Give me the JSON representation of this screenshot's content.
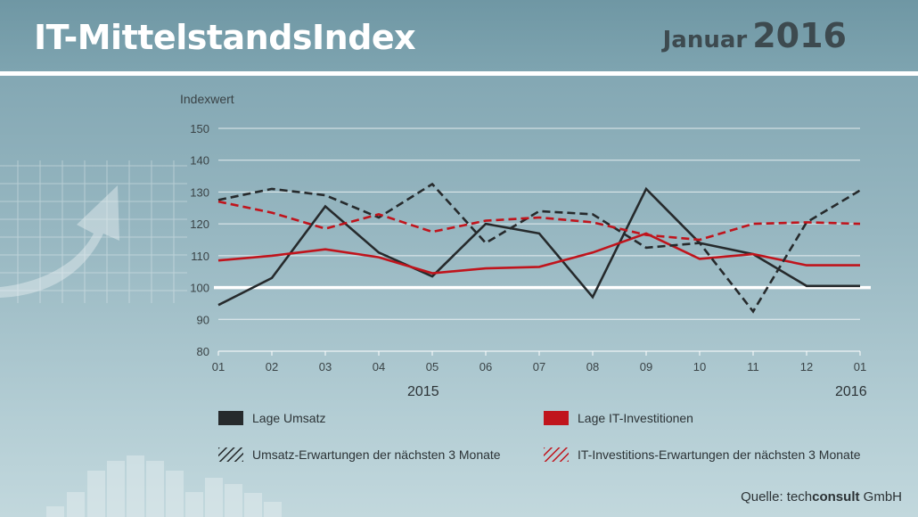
{
  "header": {
    "title": "IT-MittelstandsIndex",
    "month": "Januar",
    "year": "2016"
  },
  "source": {
    "prefix": "Quelle:",
    "brand_light": "tech",
    "brand_bold": "consult",
    "suffix": "GmbH"
  },
  "colors": {
    "umsatz": "#262a2c",
    "investitionen": "#c0141c",
    "reference_line": "#ffffff",
    "grid": "#ffffff"
  },
  "decor_icons": [
    "grid-icon",
    "arrow-up-icon",
    "bar-chart-icon"
  ],
  "chart_data": {
    "type": "line",
    "ylabel": "Indexwert",
    "ylim": [
      80,
      150
    ],
    "yticks": [
      80,
      90,
      100,
      110,
      120,
      130,
      140,
      150
    ],
    "categories": [
      "01",
      "02",
      "03",
      "04",
      "05",
      "06",
      "07",
      "08",
      "09",
      "10",
      "11",
      "12",
      "01"
    ],
    "year_labels": [
      {
        "label": "2015",
        "category_index": 6
      },
      {
        "label": "2016",
        "category_index": 12
      }
    ],
    "reference_line": 100,
    "grid": true,
    "legend_position": "bottom",
    "series": [
      {
        "name": "Lage Umsatz",
        "style": "solid",
        "color": "#262a2c",
        "values": [
          94.5,
          103,
          125.5,
          111,
          103.5,
          120,
          117,
          97,
          131,
          114,
          110.5,
          100.5,
          100.5
        ]
      },
      {
        "name": "Lage IT-Investitionen",
        "style": "solid",
        "color": "#c0141c",
        "values": [
          108.5,
          110,
          112,
          109.5,
          104.5,
          106,
          106.5,
          111,
          117,
          109,
          110.5,
          107,
          107
        ]
      },
      {
        "name": "Umsatz-Erwartungen der nächsten 3 Monate",
        "style": "dashed",
        "color": "#262a2c",
        "values": [
          127.5,
          131,
          129,
          122,
          132.5,
          114,
          124,
          123,
          112.5,
          114,
          92.5,
          120.5,
          130.5
        ]
      },
      {
        "name": "IT-Investitions-Erwartungen der nächsten 3 Monate",
        "style": "dashed",
        "color": "#c0141c",
        "values": [
          127,
          123.5,
          118.5,
          123,
          117.5,
          121,
          122,
          120.5,
          116.5,
          115,
          120,
          120.5,
          120
        ]
      }
    ]
  }
}
